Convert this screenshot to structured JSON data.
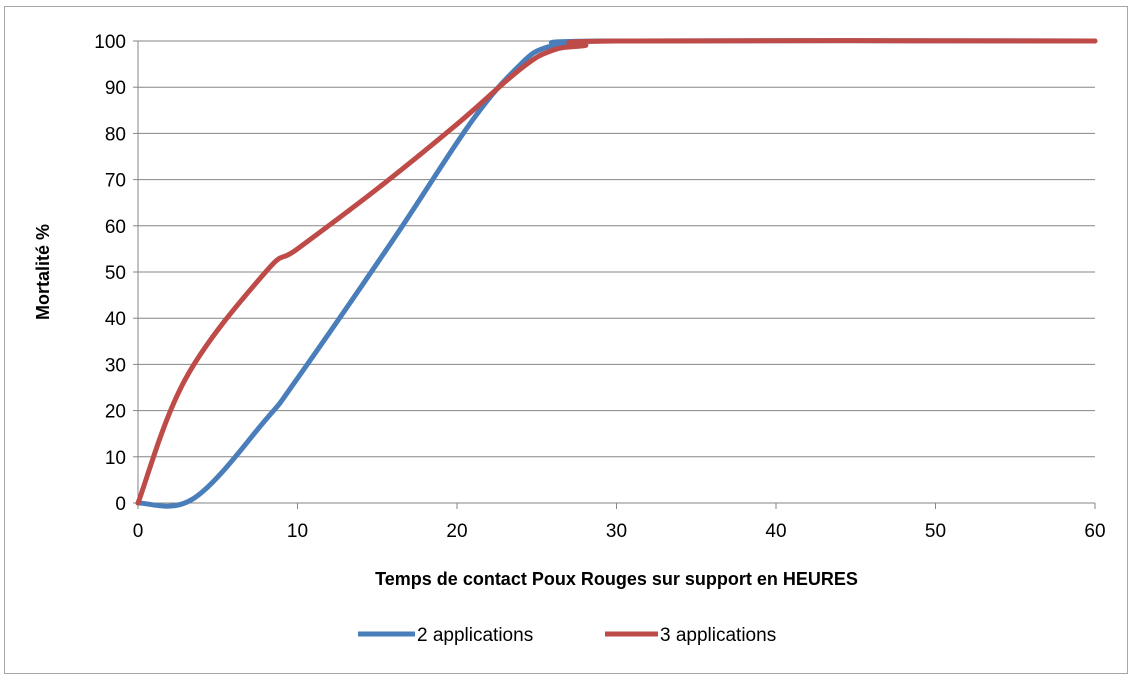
{
  "chart_data": {
    "type": "line",
    "title": "",
    "xlabel": "Temps de contact Poux Rouges sur support en HEURES",
    "ylabel": "Mortalité %",
    "xlim": [
      0,
      60
    ],
    "ylim": [
      0,
      100
    ],
    "x_ticks": [
      0,
      10,
      20,
      30,
      40,
      50,
      60
    ],
    "y_ticks": [
      0,
      10,
      20,
      30,
      40,
      50,
      60,
      70,
      80,
      90,
      100
    ],
    "grid": "horizontal",
    "legend_position": "bottom",
    "series": [
      {
        "name": "2 applications",
        "color": "#4a7ebb",
        "points": [
          [
            0,
            0
          ],
          [
            3.5,
            1
          ],
          [
            8,
            18
          ],
          [
            10,
            27
          ],
          [
            16,
            57
          ],
          [
            21,
            83
          ],
          [
            24,
            95
          ],
          [
            25.5,
            98.5
          ],
          [
            27,
            99
          ],
          [
            29,
            100
          ],
          [
            60,
            100
          ]
        ]
      },
      {
        "name": "3 applications",
        "color": "#be4b48",
        "points": [
          [
            0,
            0
          ],
          [
            3,
            27
          ],
          [
            8,
            50
          ],
          [
            10,
            55
          ],
          [
            15,
            68
          ],
          [
            20,
            82
          ],
          [
            24,
            94
          ],
          [
            26,
            98
          ],
          [
            28,
            99
          ],
          [
            30,
            100
          ],
          [
            60,
            100
          ]
        ]
      }
    ]
  }
}
